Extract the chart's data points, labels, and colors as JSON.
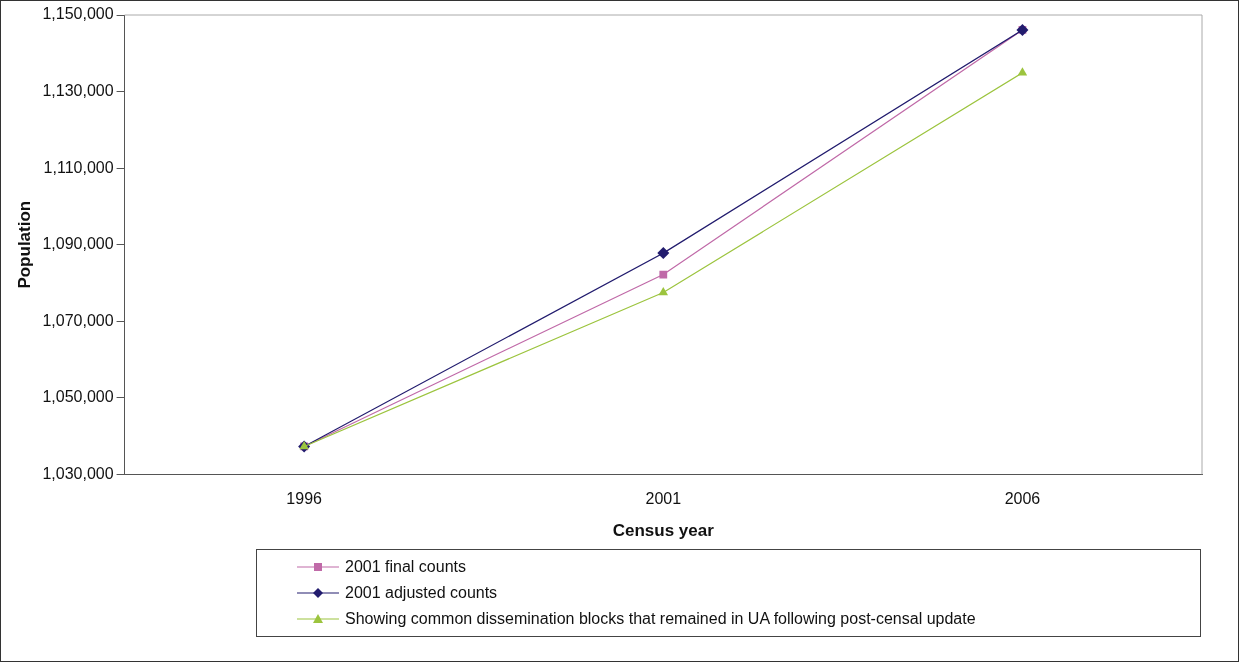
{
  "chart_data": {
    "type": "line",
    "xlabel": "Census year",
    "ylabel": "Population",
    "categories": [
      "1996",
      "2001",
      "2006"
    ],
    "series": [
      {
        "name": "2001 final counts",
        "color": "#c06aa8",
        "marker": "square",
        "values": [
          1037300,
          1082200,
          1146100
        ]
      },
      {
        "name": "2001 adjusted counts",
        "color": "#221c6e",
        "marker": "diamond",
        "values": [
          1037300,
          1087800,
          1146100
        ]
      },
      {
        "name": "Showing common dissemination blocks that remained in UA following post-censal update",
        "color": "#9cc43e",
        "marker": "triangle",
        "values": [
          1037300,
          1077500,
          1134900
        ]
      }
    ],
    "ylim": [
      1030000,
      1150000
    ],
    "yticks": [
      {
        "value": 1030000,
        "label": "1,030,000"
      },
      {
        "value": 1050000,
        "label": "1,050,000"
      },
      {
        "value": 1070000,
        "label": "1,070,000"
      },
      {
        "value": 1090000,
        "label": "1,090,000"
      },
      {
        "value": 1110000,
        "label": "1,110,000"
      },
      {
        "value": 1130000,
        "label": "1,130,000"
      },
      {
        "value": 1150000,
        "label": "1,150,000"
      }
    ],
    "grid": false,
    "legend": "bottom",
    "line_style": "solid"
  }
}
